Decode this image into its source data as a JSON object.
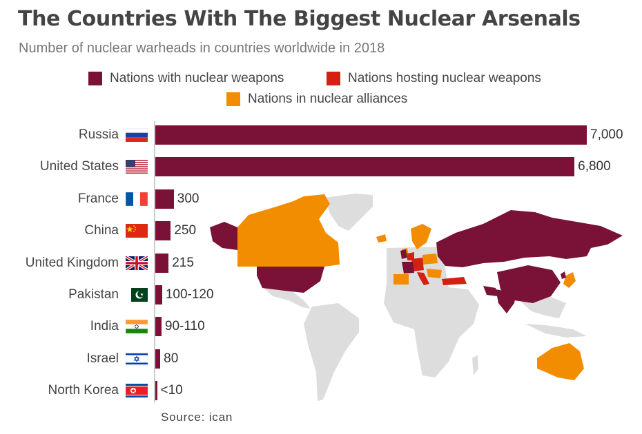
{
  "colors": {
    "nuclear": "#7a1137",
    "hosting": "#d42012",
    "alliance": "#f28c00",
    "land": "#dddddd"
  },
  "legend": [
    {
      "label": "Nations with nuclear weapons",
      "color": "#7a1137"
    },
    {
      "label": "Nations hosting nuclear weapons",
      "color": "#d42012"
    },
    {
      "label": "Nations in nuclear alliances",
      "color": "#f28c00"
    }
  ],
  "source": "Source: ican",
  "chart_data": {
    "type": "bar",
    "orientation": "horizontal",
    "title": "The Countries With The Biggest Nuclear Arsenals",
    "subtitle": "Number of nuclear warheads in countries worldwide in 2018",
    "categories": [
      "Russia",
      "United States",
      "France",
      "China",
      "United Kingdom",
      "Pakistan",
      "India",
      "Israel",
      "North Korea"
    ],
    "values": [
      7000,
      6800,
      300,
      250,
      215,
      110,
      100,
      80,
      10
    ],
    "value_labels": [
      "7,000",
      "6,800",
      "300",
      "250",
      "215",
      "100-120",
      "90-110",
      "80",
      "<10"
    ],
    "flags": [
      "russia-flag-icon",
      "usa-flag-icon",
      "france-flag-icon",
      "china-flag-icon",
      "uk-flag-icon",
      "pakistan-flag-icon",
      "india-flag-icon",
      "israel-flag-icon",
      "north-korea-flag-icon"
    ],
    "xlim": [
      0,
      7000
    ],
    "grid": false,
    "legend_position": "top"
  }
}
